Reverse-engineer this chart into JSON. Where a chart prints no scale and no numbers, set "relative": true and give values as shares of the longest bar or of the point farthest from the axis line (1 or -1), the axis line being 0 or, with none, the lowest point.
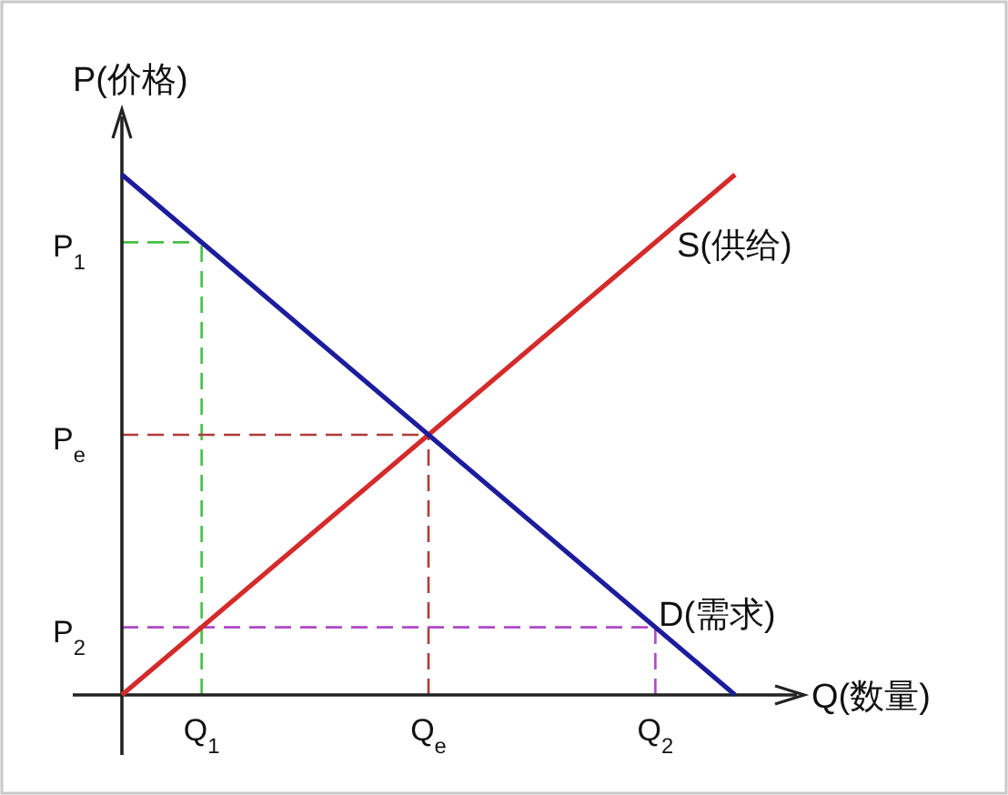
{
  "chart_data": {
    "type": "line",
    "relative": true,
    "xlabel": "Q(数量)",
    "ylabel": "P(价格)",
    "line_style": "solid",
    "categories": [
      null,
      null
    ],
    "series": [
      {
        "name": "S(供给)",
        "color": "#d42a2a",
        "values": [
          0,
          1
        ]
      },
      {
        "name": "D(需求)",
        "color": "#1c1c9c",
        "values": [
          1,
          0
        ]
      }
    ],
    "ref_lines": [
      {
        "axis": "y",
        "value": 0.87,
        "label": "P$_{1}$",
        "color": "#44c044",
        "line_style": "dashed"
      },
      {
        "axis": "y",
        "value": 0.5,
        "label": "P$_{e}$",
        "color": "#b03a3a",
        "line_style": "dashed"
      },
      {
        "axis": "y",
        "value": 0.13,
        "label": "P$_{2}$",
        "color": "#b048c8",
        "line_style": "dashed"
      }
    ],
    "annotations": [
      "Q$_{1}$",
      "Q$_{e}$",
      "Q$_{2}$"
    ]
  }
}
